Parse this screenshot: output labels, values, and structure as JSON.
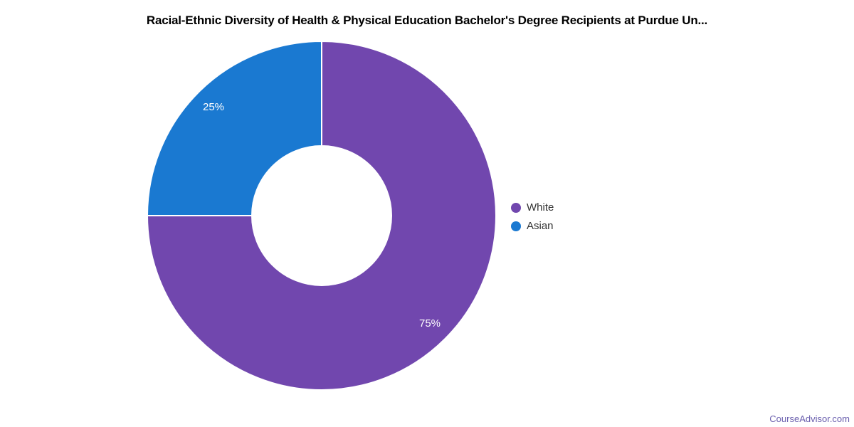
{
  "page": {
    "background": "#ffffff"
  },
  "chart_data": {
    "type": "pie",
    "donut": true,
    "title": "Racial-Ethnic Diversity of Health & Physical Education Bachelor's Degree Recipients at Purdue Un...",
    "start_angle_deg": 0,
    "direction": "clockwise",
    "legend_position": "right",
    "slice_border_color": "#ffffff",
    "data_label_color": "#ffffff",
    "slices": [
      {
        "label": "White",
        "value": 75,
        "data_label": "75%",
        "color": "#7147ae"
      },
      {
        "label": "Asian",
        "value": 25,
        "data_label": "25%",
        "color": "#1a79d1"
      }
    ]
  },
  "footer": {
    "brand": "CourseAdvisor.com",
    "color": "#6a5fae"
  }
}
